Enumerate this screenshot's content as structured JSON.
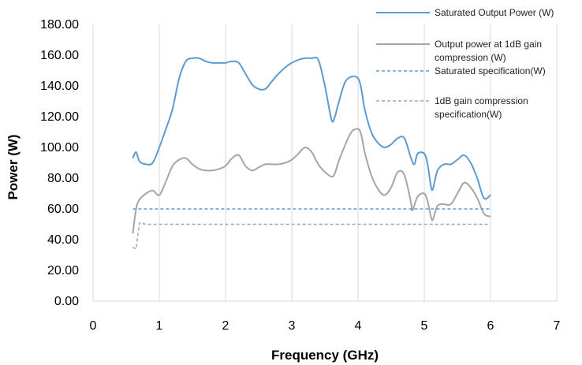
{
  "chart_data": {
    "type": "line",
    "title": "",
    "xlabel": "Frequency (GHz)",
    "ylabel": "Power (W)",
    "xlim": [
      0,
      7
    ],
    "ylim": [
      0,
      180
    ],
    "x_ticks": [
      0,
      1,
      2,
      3,
      4,
      5,
      6,
      7
    ],
    "y_ticks": [
      "0.00",
      "20.00",
      "40.00",
      "60.00",
      "80.00",
      "100.00",
      "120.00",
      "140.00",
      "160.00",
      "180.00"
    ],
    "grid": "vertical",
    "legend_position": "top-right",
    "series": [
      {
        "name": "Saturated Output Power (W)",
        "color": "#5B9BD5",
        "style": "solid",
        "points": [
          [
            0.6,
            93
          ],
          [
            0.65,
            97
          ],
          [
            0.7,
            91
          ],
          [
            0.8,
            89
          ],
          [
            0.9,
            90
          ],
          [
            1.0,
            100
          ],
          [
            1.1,
            112
          ],
          [
            1.2,
            125
          ],
          [
            1.3,
            145
          ],
          [
            1.4,
            156
          ],
          [
            1.5,
            158
          ],
          [
            1.6,
            158
          ],
          [
            1.7,
            156
          ],
          [
            1.8,
            155
          ],
          [
            1.9,
            155
          ],
          [
            2.0,
            155
          ],
          [
            2.1,
            156
          ],
          [
            2.2,
            155
          ],
          [
            2.3,
            148
          ],
          [
            2.4,
            141
          ],
          [
            2.5,
            138
          ],
          [
            2.6,
            138
          ],
          [
            2.7,
            143
          ],
          [
            2.8,
            148
          ],
          [
            2.9,
            152
          ],
          [
            3.0,
            155
          ],
          [
            3.1,
            157
          ],
          [
            3.2,
            158
          ],
          [
            3.3,
            158
          ],
          [
            3.4,
            157
          ],
          [
            3.5,
            140
          ],
          [
            3.6,
            118
          ],
          [
            3.65,
            120
          ],
          [
            3.7,
            128
          ],
          [
            3.8,
            142
          ],
          [
            3.9,
            146
          ],
          [
            4.0,
            145
          ],
          [
            4.05,
            138
          ],
          [
            4.1,
            125
          ],
          [
            4.2,
            110
          ],
          [
            4.3,
            103
          ],
          [
            4.4,
            100
          ],
          [
            4.5,
            102
          ],
          [
            4.6,
            106
          ],
          [
            4.7,
            106
          ],
          [
            4.8,
            93
          ],
          [
            4.85,
            89
          ],
          [
            4.9,
            96
          ],
          [
            5.0,
            96
          ],
          [
            5.05,
            89
          ],
          [
            5.1,
            75
          ],
          [
            5.13,
            73
          ],
          [
            5.2,
            85
          ],
          [
            5.3,
            89
          ],
          [
            5.4,
            89
          ],
          [
            5.5,
            92
          ],
          [
            5.6,
            95
          ],
          [
            5.7,
            90
          ],
          [
            5.8,
            80
          ],
          [
            5.9,
            67
          ],
          [
            6.0,
            69
          ]
        ]
      },
      {
        "name": "Output power at 1dB gain compression (W)",
        "color": "#A5A5A5",
        "style": "solid",
        "points": [
          [
            0.6,
            44
          ],
          [
            0.65,
            60
          ],
          [
            0.7,
            66
          ],
          [
            0.8,
            70
          ],
          [
            0.9,
            72
          ],
          [
            1.0,
            69
          ],
          [
            1.1,
            78
          ],
          [
            1.2,
            88
          ],
          [
            1.3,
            92
          ],
          [
            1.4,
            93
          ],
          [
            1.5,
            89
          ],
          [
            1.6,
            86
          ],
          [
            1.7,
            85
          ],
          [
            1.8,
            85
          ],
          [
            1.9,
            86
          ],
          [
            2.0,
            88
          ],
          [
            2.1,
            93
          ],
          [
            2.2,
            95
          ],
          [
            2.3,
            88
          ],
          [
            2.4,
            85
          ],
          [
            2.5,
            87
          ],
          [
            2.6,
            89
          ],
          [
            2.7,
            89
          ],
          [
            2.8,
            89
          ],
          [
            2.9,
            90
          ],
          [
            3.0,
            92
          ],
          [
            3.1,
            96
          ],
          [
            3.2,
            100
          ],
          [
            3.3,
            97
          ],
          [
            3.4,
            89
          ],
          [
            3.5,
            84
          ],
          [
            3.6,
            81
          ],
          [
            3.65,
            83
          ],
          [
            3.7,
            90
          ],
          [
            3.8,
            101
          ],
          [
            3.9,
            110
          ],
          [
            4.0,
            112
          ],
          [
            4.05,
            108
          ],
          [
            4.1,
            97
          ],
          [
            4.2,
            82
          ],
          [
            4.3,
            73
          ],
          [
            4.4,
            69
          ],
          [
            4.5,
            74
          ],
          [
            4.6,
            84
          ],
          [
            4.7,
            82
          ],
          [
            4.8,
            64
          ],
          [
            4.82,
            59
          ],
          [
            4.9,
            68
          ],
          [
            5.0,
            70
          ],
          [
            5.05,
            65
          ],
          [
            5.1,
            55
          ],
          [
            5.13,
            53
          ],
          [
            5.2,
            62
          ],
          [
            5.3,
            63
          ],
          [
            5.4,
            63
          ],
          [
            5.5,
            70
          ],
          [
            5.6,
            77
          ],
          [
            5.7,
            74
          ],
          [
            5.8,
            67
          ],
          [
            5.9,
            57
          ],
          [
            6.0,
            55
          ]
        ]
      },
      {
        "name": "Saturated specification(W)",
        "color": "#5B9BD5",
        "style": "dashed",
        "points": [
          [
            0.6,
            60
          ],
          [
            6.0,
            60
          ]
        ]
      },
      {
        "name": "1dB gain compression specification(W)",
        "color": "#A5A5A5",
        "style": "dashed",
        "points": [
          [
            0.6,
            35
          ],
          [
            0.65,
            34
          ],
          [
            0.7,
            51
          ],
          [
            0.8,
            50
          ],
          [
            6.0,
            50
          ]
        ]
      }
    ],
    "legend_lines": [
      [
        "Saturated Output Power (W)"
      ],
      [
        "Output power at 1dB gain",
        "compression (W)"
      ],
      [
        "Saturated specification(W)"
      ],
      [
        " 1dB gain compression",
        "specification(W)"
      ]
    ]
  }
}
